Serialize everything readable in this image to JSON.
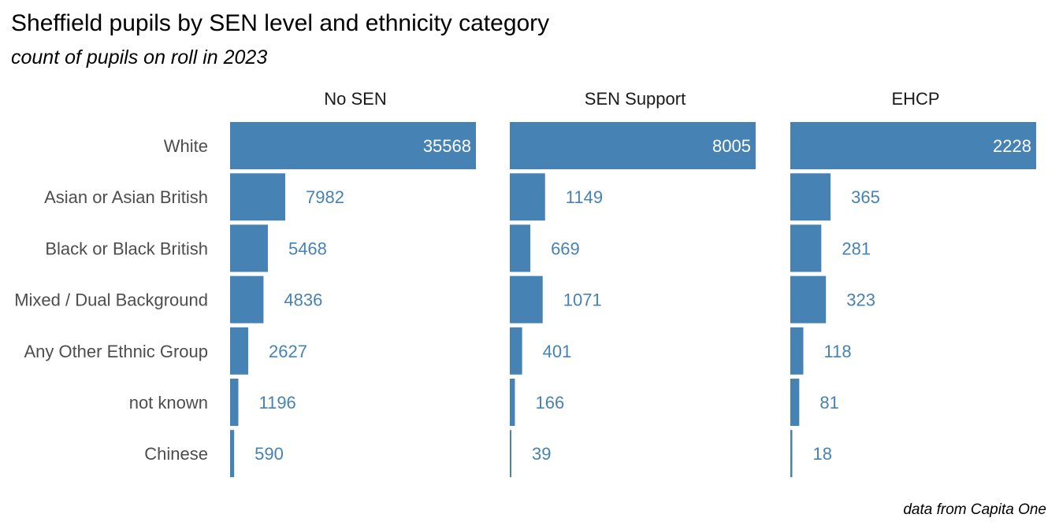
{
  "chart_data": {
    "type": "bar",
    "orientation": "horizontal",
    "title": "Sheffield pupils by SEN level and ethnicity category",
    "subtitle": "count of pupils on roll in 2023",
    "caption": "data from Capita One",
    "categories": [
      "White",
      "Asian or Asian British",
      "Black or Black British",
      "Mixed / Dual Background",
      "Any Other Ethnic Group",
      "not known",
      "Chinese"
    ],
    "facets": [
      {
        "name": "No SEN",
        "values": [
          35568,
          7982,
          5468,
          4836,
          2627,
          1196,
          590
        ]
      },
      {
        "name": "SEN Support",
        "values": [
          8005,
          1149,
          669,
          1071,
          401,
          166,
          39
        ]
      },
      {
        "name": "EHCP",
        "values": [
          2228,
          365,
          281,
          323,
          118,
          81,
          18
        ]
      }
    ],
    "scales": "free_x",
    "grid": false,
    "colors": {
      "bar": "#4682b4",
      "inside_label": "#ffffff",
      "outside_label": "#4682b4"
    }
  }
}
